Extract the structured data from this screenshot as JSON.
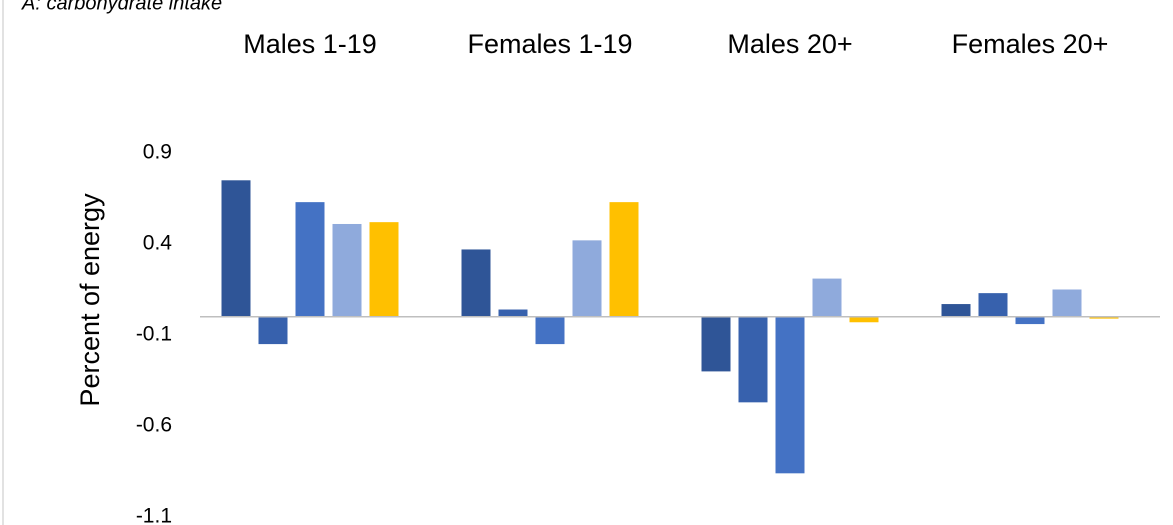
{
  "chart_data": {
    "type": "bar",
    "title": "A: carbohydrate intake",
    "y_label": "Percent of energy",
    "categories": [
      "Males 1-19",
      "Females 1-19",
      "Males 20+",
      "Females 20+"
    ],
    "series": [
      {
        "color": "#2f5597",
        "values": [
          0.75,
          0.37,
          -0.3,
          0.07
        ]
      },
      {
        "color": "#3761ad",
        "values": [
          -0.15,
          0.04,
          -0.47,
          0.13
        ]
      },
      {
        "color": "#4472c4",
        "values": [
          0.63,
          -0.15,
          -0.86,
          -0.04
        ]
      },
      {
        "color": "#8faadc",
        "values": [
          0.51,
          0.42,
          0.21,
          0.15
        ]
      },
      {
        "color": "#ffc000",
        "values": [
          0.52,
          0.63,
          -0.03,
          -0.01
        ]
      }
    ],
    "ylim": [
      -1.1,
      0.9
    ],
    "yticks": [
      0.9,
      0.4,
      -0.1,
      -0.6,
      -1.1
    ]
  }
}
